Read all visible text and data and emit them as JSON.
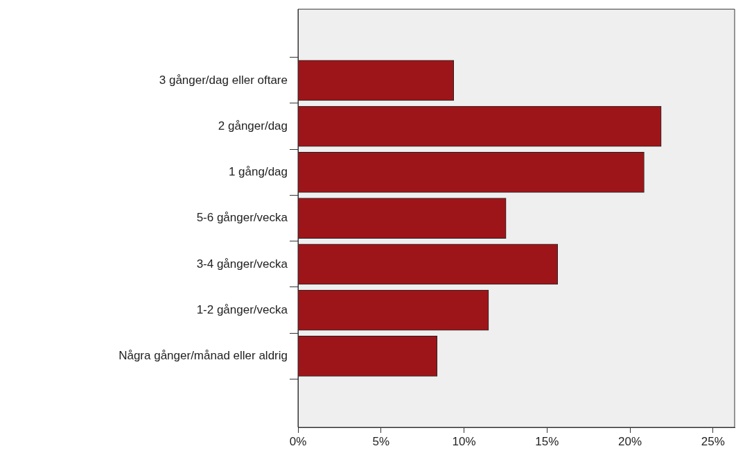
{
  "chart_data": {
    "type": "bar",
    "orientation": "horizontal",
    "categories": [
      "3 gånger/dag eller oftare",
      "2 gånger/dag",
      "1 gång/dag",
      "5-6 gånger/vecka",
      "3-4 gånger/vecka",
      "1-2 gånger/vecka",
      "Några gånger/månad eller aldrig"
    ],
    "values": [
      9.38,
      21.88,
      20.85,
      12.53,
      15.64,
      11.48,
      8.38
    ],
    "color": "#9e1519",
    "xlim": [
      0,
      26.3
    ],
    "xticks": [
      {
        "value": 0,
        "label": "0%"
      },
      {
        "value": 5,
        "label": "5%"
      },
      {
        "value": 10,
        "label": "10%"
      },
      {
        "value": 15,
        "label": "15%"
      },
      {
        "value": 20,
        "label": "20%"
      },
      {
        "value": 25,
        "label": "25%"
      }
    ],
    "grid": false,
    "legend": false
  }
}
